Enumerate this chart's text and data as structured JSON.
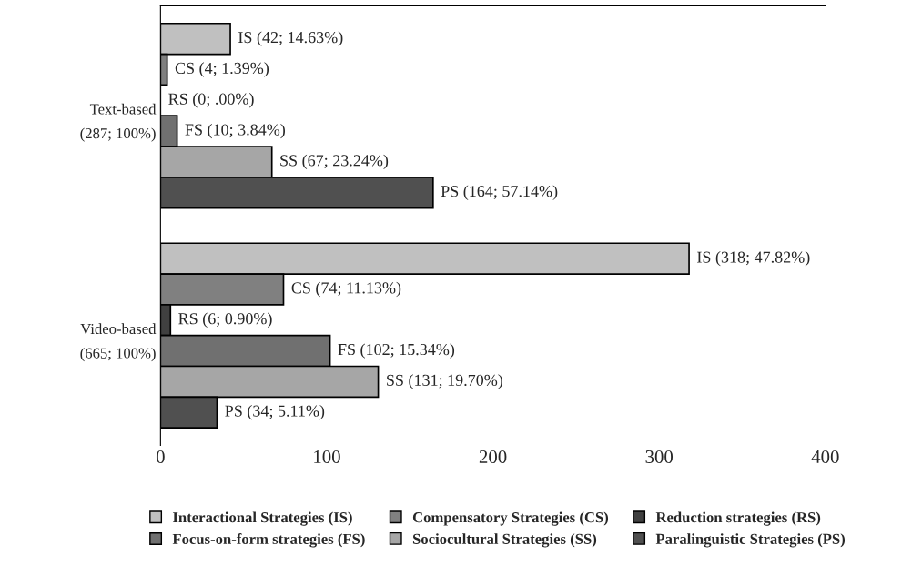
{
  "chart_data": {
    "type": "bar",
    "orientation": "horizontal",
    "categories": [
      "Text-based\n(287; 100%)",
      "Video-based\n(665; 100%)"
    ],
    "series": [
      {
        "name": "Interactional Strategies (IS)",
        "color": "#c0c0c0",
        "values": [
          42,
          318
        ],
        "value_labels": [
          "IS (42; 14.63%)",
          "IS (318; 47.82%)"
        ]
      },
      {
        "name": "Compensatory Strategies (CS)",
        "color": "#808080",
        "values": [
          4,
          74
        ],
        "value_labels": [
          "CS (4; 1.39%)",
          "CS (74; 11.13%)"
        ]
      },
      {
        "name": "Reduction strategies (RS)",
        "color": "#404040",
        "values": [
          0,
          6
        ],
        "value_labels": [
          "RS (0; .00%)",
          "RS (6; 0.90%)"
        ]
      },
      {
        "name": "Focus-on-form strategies (FS)",
        "color": "#707070",
        "values": [
          10,
          102
        ],
        "value_labels": [
          "FS (10; 3.84%)",
          "FS (102; 15.34%)"
        ]
      },
      {
        "name": "Sociocultural Strategies (SS)",
        "color": "#a6a6a6",
        "values": [
          67,
          131
        ],
        "value_labels": [
          "SS (67; 23.24%)",
          "SS (131; 19.70%)"
        ]
      },
      {
        "name": "Paralinguistic Strategies (PS)",
        "color": "#505050",
        "values": [
          164,
          34
        ],
        "value_labels": [
          "PS (164; 57.14%)",
          "PS (34; 5.11%)"
        ]
      }
    ],
    "xlim": [
      0,
      400
    ],
    "xticks": [
      0,
      100,
      200,
      300,
      400
    ],
    "legend": "bottom",
    "marker": "square"
  }
}
